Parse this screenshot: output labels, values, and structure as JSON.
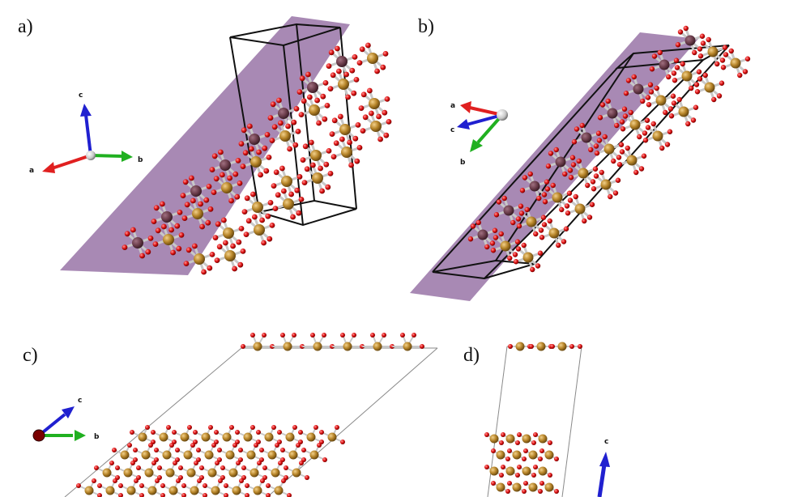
{
  "panels": [
    {
      "id": "a",
      "label": "a)"
    },
    {
      "id": "b",
      "label": "b)"
    },
    {
      "id": "c",
      "label": "c)"
    },
    {
      "id": "d",
      "label": "d)"
    }
  ],
  "axes": {
    "a": {
      "x": "a",
      "y": "b",
      "z": "c"
    },
    "b": {
      "x": "a",
      "y": "b",
      "z": "c"
    },
    "c": {
      "y": "b",
      "z": "c"
    },
    "d": {
      "z": "c"
    }
  },
  "colors": {
    "metal_atom": "#b8862a",
    "oxygen_atom": "#e01414",
    "bond": "#c8c8c8",
    "plane": "#7a4a8c",
    "axis_a": "#e02020",
    "axis_b": "#20b020",
    "axis_c": "#2020d0",
    "cell_edge": "#111111"
  }
}
